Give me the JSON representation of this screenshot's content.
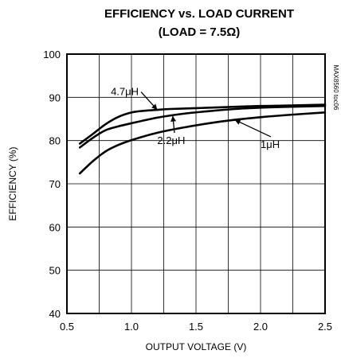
{
  "chart_data": {
    "type": "line",
    "title": "EFFICIENCY vs. LOAD CURRENT",
    "subtitle": "(LOAD = 7.5Ω)",
    "xlabel": "OUTPUT VOLTAGE (V)",
    "ylabel": "EFFICIENCY (%)",
    "xlim": [
      0.5,
      2.5
    ],
    "ylim": [
      40,
      100
    ],
    "x_ticks": [
      "0.5",
      "1.0",
      "1.5",
      "2.0",
      "2.5"
    ],
    "y_ticks": [
      "40",
      "50",
      "60",
      "70",
      "80",
      "90",
      "100"
    ],
    "grid": true,
    "watermark": "MAX8560 toc06",
    "series": [
      {
        "name": "4.7μH",
        "x": [
          0.6,
          0.7,
          0.8,
          0.9,
          1.0,
          1.1,
          1.2,
          1.3,
          1.5,
          1.7,
          2.0,
          2.2,
          2.5
        ],
        "values": [
          79.3,
          81.5,
          83.8,
          85.5,
          86.5,
          86.9,
          87.1,
          87.3,
          87.5,
          87.7,
          88.0,
          88.1,
          88.3
        ]
      },
      {
        "name": "2.2μH",
        "x": [
          0.6,
          0.7,
          0.8,
          0.9,
          1.0,
          1.2,
          1.4,
          1.6,
          1.8,
          2.0,
          2.2,
          2.5
        ],
        "values": [
          78.4,
          80.6,
          82.4,
          83.3,
          84.0,
          85.3,
          86.2,
          86.8,
          87.3,
          87.6,
          87.8,
          88.0
        ]
      },
      {
        "name": "1μH",
        "x": [
          0.6,
          0.7,
          0.8,
          0.9,
          1.0,
          1.2,
          1.4,
          1.6,
          1.8,
          2.0,
          2.2,
          2.5
        ],
        "values": [
          72.4,
          75.2,
          77.5,
          79.0,
          80.1,
          81.8,
          83.0,
          84.0,
          84.8,
          85.4,
          85.9,
          86.5
        ]
      }
    ],
    "annotations": [
      {
        "text": "4.7μH",
        "x": 0.84,
        "y": 90.5,
        "point_x": 1.2,
        "point_y": 87.1
      },
      {
        "text": "2.2μH",
        "x": 1.2,
        "y": 79.2,
        "point_x": 1.32,
        "point_y": 85.7
      },
      {
        "text": "1μH",
        "x": 2.0,
        "y": 78.3,
        "point_x": 1.8,
        "point_y": 84.8
      }
    ]
  }
}
